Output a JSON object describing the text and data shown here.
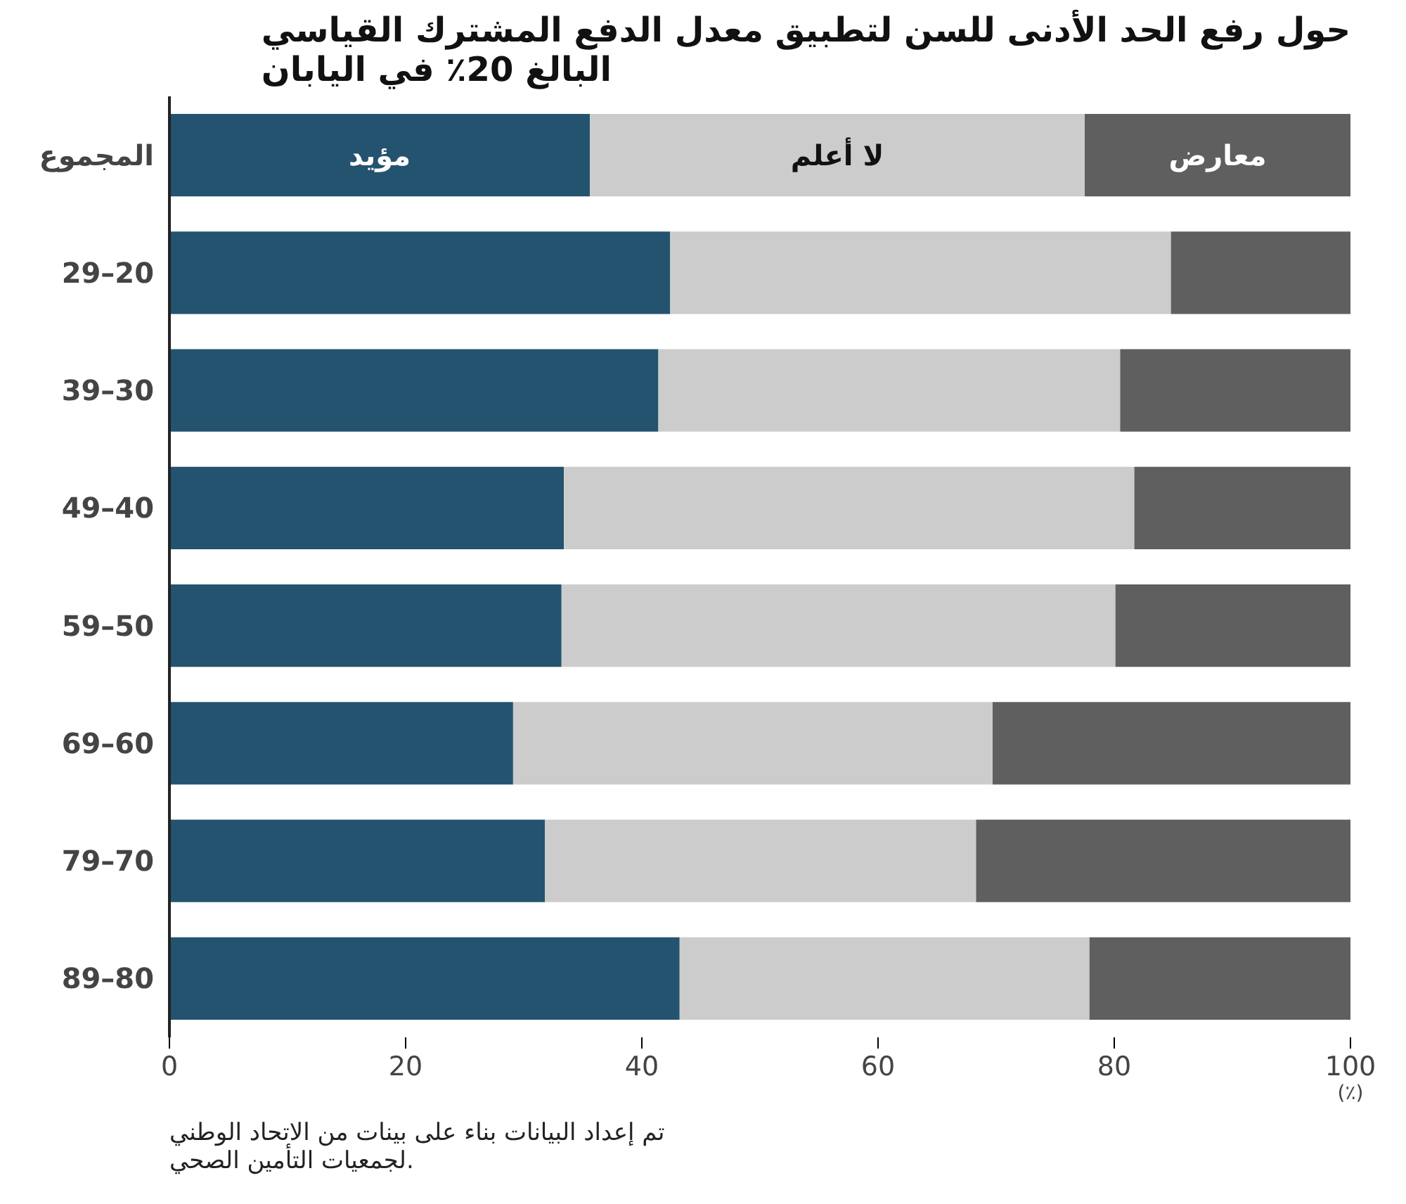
{
  "chart_data": {
    "type": "bar",
    "orientation": "horizontal",
    "stacked": true,
    "title": "حول رفع الحد الأدنى للسن لتطبيق معدل الدفع المشترك القياسي البالغ 20٪ في اليابان",
    "xlabel": "(٪)",
    "categories": [
      "المجموع",
      "29–20",
      "39–30",
      "49–40",
      "59–50",
      "69–60",
      "79–70",
      "89–80"
    ],
    "series": [
      {
        "name": "مؤيد",
        "color": "#23536f",
        "values": [
          35.6,
          42.4,
          41.4,
          33.4,
          33.2,
          29.1,
          31.8,
          43.2
        ]
      },
      {
        "name": "لا أعلم",
        "color": "#cccccc",
        "values": [
          41.9,
          42.4,
          39.1,
          48.3,
          46.9,
          40.6,
          36.5,
          34.7
        ]
      },
      {
        "name": "معارض",
        "color": "#5f5f5f",
        "values": [
          22.5,
          15.2,
          19.5,
          18.3,
          19.9,
          30.3,
          31.7,
          22.1
        ]
      }
    ],
    "xlim": [
      0,
      100
    ],
    "xticks": [
      0,
      20,
      40,
      60,
      80,
      100
    ],
    "grid": false,
    "legend": false,
    "annotations": [
      "تم إعداد البيانات بناء على بينات من الاتحاد الوطني لجمعيات التأمين الصحي."
    ]
  }
}
